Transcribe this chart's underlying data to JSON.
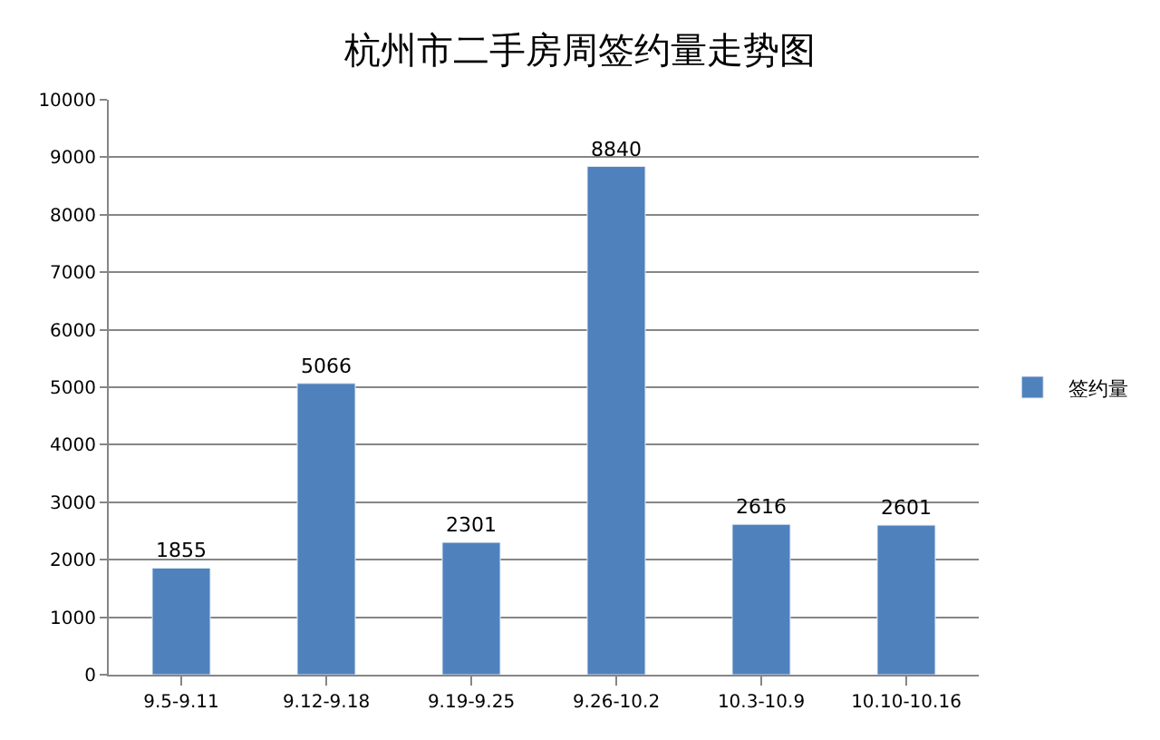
{
  "chart_data": {
    "type": "bar",
    "title": "杭州市二手房周签约量走势图",
    "categories": [
      "9.5-9.11",
      "9.12-9.18",
      "9.19-9.25",
      "9.26-10.2",
      "10.3-10.9",
      "10.10-10.16"
    ],
    "series": [
      {
        "name": "签约量",
        "color": "#4f81bd",
        "values": [
          1855,
          5066,
          2301,
          8840,
          2616,
          2601
        ]
      }
    ],
    "ylim": [
      0,
      10000
    ],
    "yticks": [
      0,
      1000,
      2000,
      3000,
      4000,
      5000,
      6000,
      7000,
      8000,
      9000,
      10000
    ],
    "grid": "y",
    "legend": "right",
    "data_labels": true
  }
}
